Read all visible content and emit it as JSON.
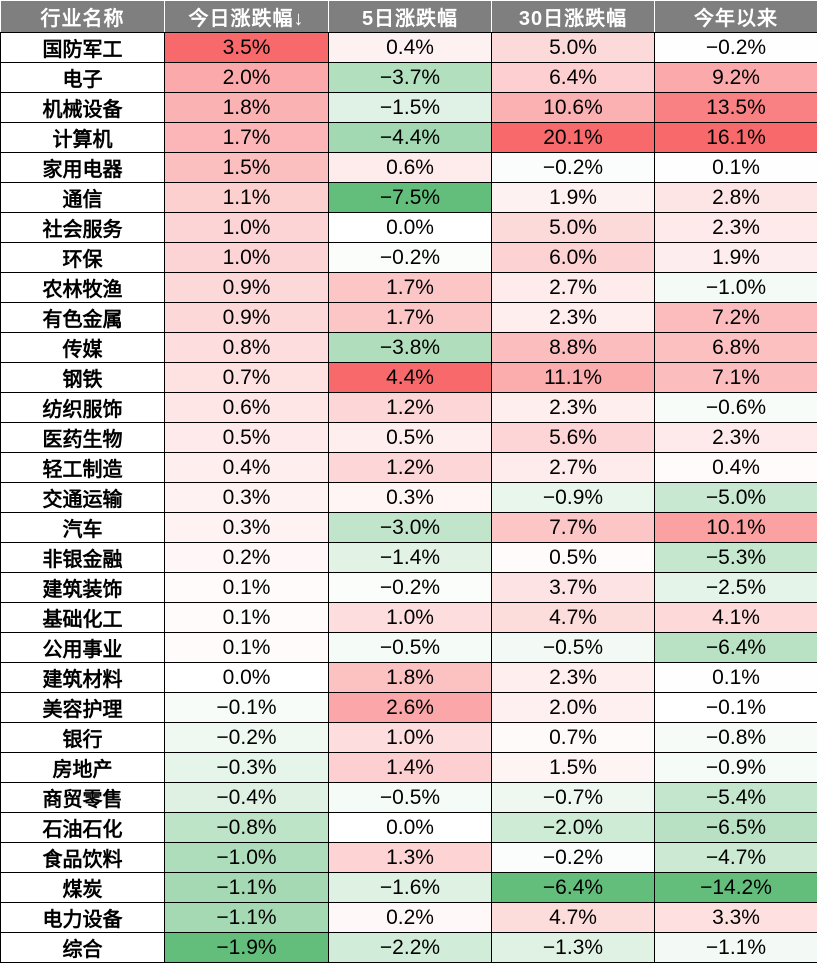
{
  "table": {
    "headers": [
      "行业名称",
      "今日涨跌幅↓",
      "5日涨跌幅",
      "30日涨跌幅",
      "今年以来"
    ],
    "rows": [
      [
        "国防军工",
        "3.5%",
        "0.4%",
        "5.0%",
        "−0.2%"
      ],
      [
        "电子",
        "2.0%",
        "−3.7%",
        "6.4%",
        "9.2%"
      ],
      [
        "机械设备",
        "1.8%",
        "−1.5%",
        "10.6%",
        "13.5%"
      ],
      [
        "计算机",
        "1.7%",
        "−4.4%",
        "20.1%",
        "16.1%"
      ],
      [
        "家用电器",
        "1.5%",
        "0.6%",
        "−0.2%",
        "0.1%"
      ],
      [
        "通信",
        "1.1%",
        "−7.5%",
        "1.9%",
        "2.8%"
      ],
      [
        "社会服务",
        "1.0%",
        "0.0%",
        "5.0%",
        "2.3%"
      ],
      [
        "环保",
        "1.0%",
        "−0.2%",
        "6.0%",
        "1.9%"
      ],
      [
        "农林牧渔",
        "0.9%",
        "1.7%",
        "2.7%",
        "−1.0%"
      ],
      [
        "有色金属",
        "0.9%",
        "1.7%",
        "2.3%",
        "7.2%"
      ],
      [
        "传媒",
        "0.8%",
        "−3.8%",
        "8.8%",
        "6.8%"
      ],
      [
        "钢铁",
        "0.7%",
        "4.4%",
        "11.1%",
        "7.1%"
      ],
      [
        "纺织服饰",
        "0.6%",
        "1.2%",
        "2.3%",
        "−0.6%"
      ],
      [
        "医药生物",
        "0.5%",
        "0.5%",
        "5.6%",
        "2.3%"
      ],
      [
        "轻工制造",
        "0.4%",
        "1.2%",
        "2.7%",
        "0.4%"
      ],
      [
        "交通运输",
        "0.3%",
        "0.3%",
        "−0.9%",
        "−5.0%"
      ],
      [
        "汽车",
        "0.3%",
        "−3.0%",
        "7.7%",
        "10.1%"
      ],
      [
        "非银金融",
        "0.2%",
        "−1.4%",
        "0.5%",
        "−5.3%"
      ],
      [
        "建筑装饰",
        "0.1%",
        "−0.2%",
        "3.7%",
        "−2.5%"
      ],
      [
        "基础化工",
        "0.1%",
        "1.0%",
        "4.7%",
        "4.1%"
      ],
      [
        "公用事业",
        "0.1%",
        "−0.5%",
        "−0.5%",
        "−6.4%"
      ],
      [
        "建筑材料",
        "0.0%",
        "1.8%",
        "2.3%",
        "0.1%"
      ],
      [
        "美容护理",
        "−0.1%",
        "2.6%",
        "2.0%",
        "−0.1%"
      ],
      [
        "银行",
        "−0.2%",
        "1.0%",
        "0.7%",
        "−0.8%"
      ],
      [
        "房地产",
        "−0.3%",
        "1.4%",
        "1.5%",
        "−0.9%"
      ],
      [
        "商贸零售",
        "−0.4%",
        "−0.5%",
        "−0.7%",
        "−5.4%"
      ],
      [
        "石油石化",
        "−0.8%",
        "0.0%",
        "−2.0%",
        "−6.5%"
      ],
      [
        "食品饮料",
        "−1.0%",
        "1.3%",
        "−0.2%",
        "−4.7%"
      ],
      [
        "煤炭",
        "−1.1%",
        "−1.6%",
        "−6.4%",
        "−14.2%"
      ],
      [
        "电力设备",
        "−1.1%",
        "0.2%",
        "4.7%",
        "3.3%"
      ],
      [
        "综合",
        "−1.9%",
        "−2.2%",
        "−1.3%",
        "−1.1%"
      ]
    ]
  },
  "colors": {
    "header_bg": "#7f7f7f",
    "header_text": "#ffffff",
    "positive_max": "#f8696b",
    "negative_max": "#63be7b",
    "neutral": "#ffffff"
  }
}
